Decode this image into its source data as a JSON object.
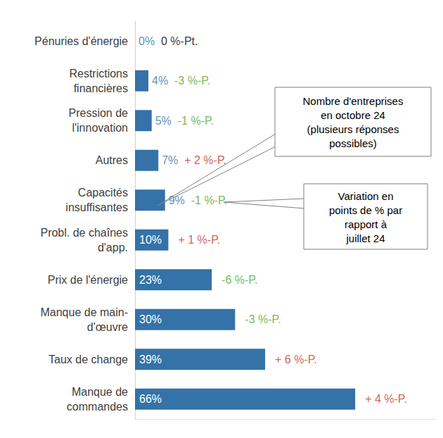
{
  "chart_data": {
    "type": "bar",
    "orientation": "horizontal",
    "categories": [
      "Pénuries d'énergie",
      "Restrictions\nfinancières",
      "Pression de\nl'innovation",
      "Autres",
      "Capacités\ninsuffisantes",
      "Probl. de chaînes\nd'app.",
      "Prix de l'énergie",
      "Manque de main-\nd'œuvre",
      "Taux de change",
      "Manque de\ncommandes"
    ],
    "values": [
      0,
      4,
      5,
      7,
      9,
      10,
      23,
      30,
      39,
      66
    ],
    "value_labels": [
      "0%",
      "4%",
      "5%",
      "7%",
      "9%",
      "10%",
      "23%",
      "30%",
      "39%",
      "66%"
    ],
    "data_labels": true,
    "color": "#3472a8",
    "change_values": [
      0,
      -3,
      -1,
      2,
      -1,
      1,
      -6,
      -3,
      6,
      4
    ],
    "change_labels": [
      "0 %-Pt.",
      "-3 %-P.",
      "-1 %-P.",
      "+ 2 %-P.",
      "-1 %-P.",
      "+ 1 %-P.",
      "-6 %-P.",
      "-3 %-P.",
      "+ 6 %-P.",
      "+ 4 %-P."
    ],
    "annotations": [
      "Nombre d'entreprises\nen octobre 24\n(plusieurs réponses\npossibles)",
      "Variation en\npoints de % par\nrapport à\njuillet 24"
    ],
    "xlim": [
      0,
      90
    ],
    "tick_labels": "y",
    "grid": false
  }
}
